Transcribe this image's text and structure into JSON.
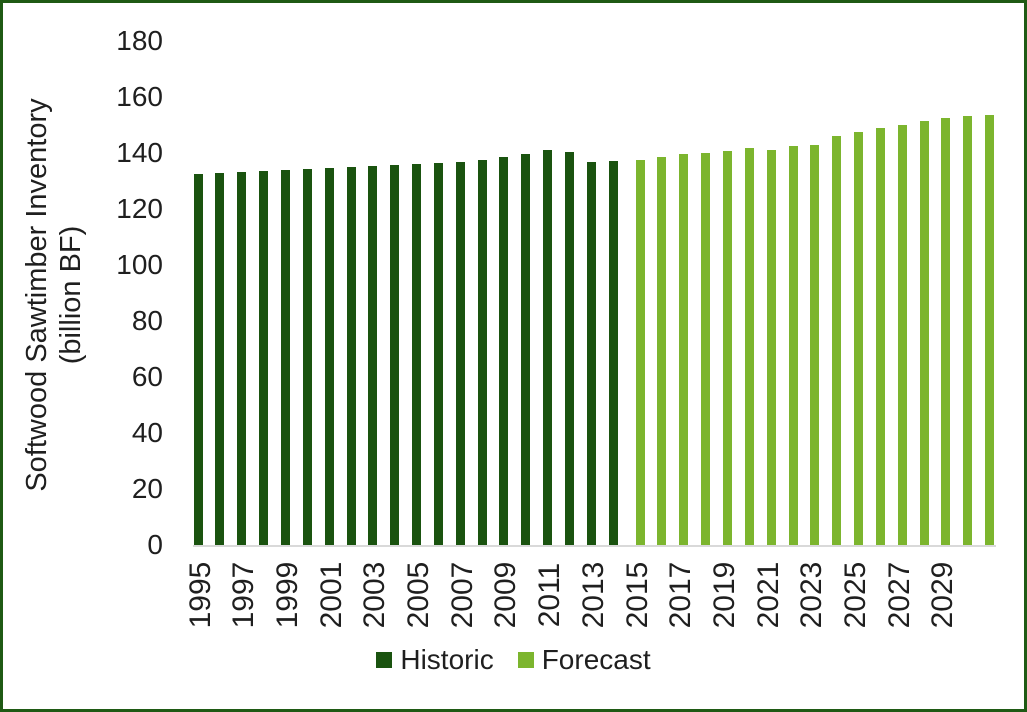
{
  "chart_data": {
    "type": "bar",
    "title": "",
    "ylabel_line1": "Softwood Sawtimber Inventory",
    "ylabel_line2": "(billion BF)",
    "ylim": [
      0,
      180
    ],
    "ytick_step": 20,
    "ytick_labels": [
      "180",
      "160",
      "140",
      "120",
      "100",
      "80",
      "60",
      "40",
      "20",
      "0"
    ],
    "x_tick_labels": [
      "1995",
      "1997",
      "1999",
      "2001",
      "2003",
      "2005",
      "2007",
      "2009",
      "2011",
      "2013",
      "2015",
      "2017",
      "2019",
      "2021",
      "2023",
      "2025",
      "2027",
      "2029"
    ],
    "grid": "off",
    "legend_position": "bottom",
    "series": [
      {
        "name": "Historic",
        "color": "#1a530f",
        "years": [
          1995,
          1996,
          1997,
          1998,
          1999,
          2000,
          2001,
          2002,
          2003,
          2004,
          2005,
          2006,
          2007,
          2008,
          2009,
          2010,
          2011,
          2012,
          2013,
          2014
        ],
        "values": [
          132.4,
          132.9,
          133.2,
          133.6,
          133.9,
          134.3,
          134.6,
          135.0,
          135.4,
          135.7,
          136.0,
          136.5,
          136.9,
          137.4,
          138.6,
          139.8,
          141.0,
          140.2,
          136.9,
          137.1
        ]
      },
      {
        "name": "Forecast",
        "color": "#7cb52e",
        "years": [
          2015,
          2016,
          2017,
          2018,
          2019,
          2020,
          2021,
          2022,
          2023,
          2024,
          2025,
          2026,
          2027,
          2028,
          2029,
          2030,
          2031
        ],
        "values": [
          137.6,
          138.7,
          139.5,
          140.1,
          140.7,
          141.9,
          141.2,
          142.4,
          143.0,
          146.0,
          147.5,
          148.9,
          149.9,
          151.3,
          152.6,
          153.3,
          153.7
        ]
      }
    ]
  },
  "colors": {
    "historic_bar": "#1a530f",
    "forecast_bar": "#7cb52e",
    "frame_border": "#1f5a14",
    "axis_line": "#d9d9d9",
    "text": "#1f1f1f",
    "background": "#ffffff"
  }
}
